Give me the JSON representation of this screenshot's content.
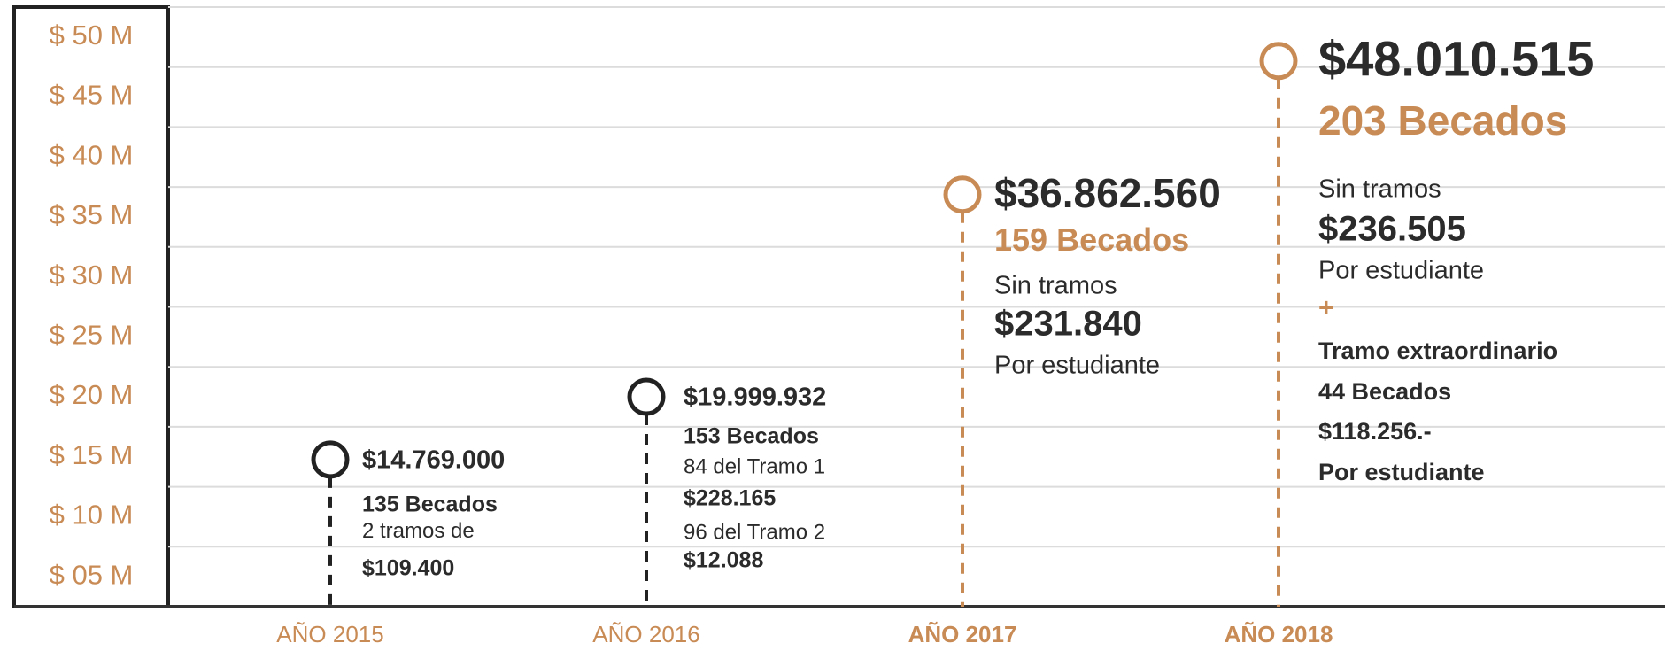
{
  "chart_data": {
    "type": "timeline",
    "categories": [
      "AÑO 2015",
      "AÑO 2016",
      "AÑO 2017",
      "AÑO 2018"
    ],
    "values": [
      14.769,
      19.999932,
      36.86256,
      48.010515
    ],
    "value_labels": [
      "$14.769.000",
      "$19.999.932",
      "$36.862.560",
      "$48.010.515"
    ],
    "point_colors": [
      "#222222",
      "#222222",
      "#c98b55",
      "#c98b55"
    ],
    "annotations": [
      [
        "135 Becados",
        "2 tramos de",
        "$109.400"
      ],
      [
        "153 Becados",
        "84 del Tramo 1",
        "$228.165",
        "96 del Tramo 2",
        "$12.088"
      ],
      [
        "159 Becados",
        "Sin tramos",
        "$231.840",
        "Por estudiante"
      ],
      [
        "203 Becados",
        "Sin tramos",
        "$236.505",
        "Por estudiante",
        "+",
        "Tramo extraordinario",
        "44 Becados",
        "$118.256.-",
        "Por estudiante"
      ]
    ],
    "ylim": [
      2.5,
      52.5
    ],
    "yticks": [
      {
        "value": 5,
        "label": "$ 05 M"
      },
      {
        "value": 10,
        "label": "$ 10 M"
      },
      {
        "value": 15,
        "label": "$ 15 M"
      },
      {
        "value": 20,
        "label": "$ 20 M"
      },
      {
        "value": 25,
        "label": "$ 25 M"
      },
      {
        "value": 30,
        "label": "$ 30 M"
      },
      {
        "value": 35,
        "label": "$ 35 M"
      },
      {
        "value": 40,
        "label": "$ 40 M"
      },
      {
        "value": 45,
        "label": "$ 45 M"
      },
      {
        "value": 50,
        "label": "$ 50 M"
      }
    ],
    "tick_color": "#c98b55",
    "grid": true
  }
}
